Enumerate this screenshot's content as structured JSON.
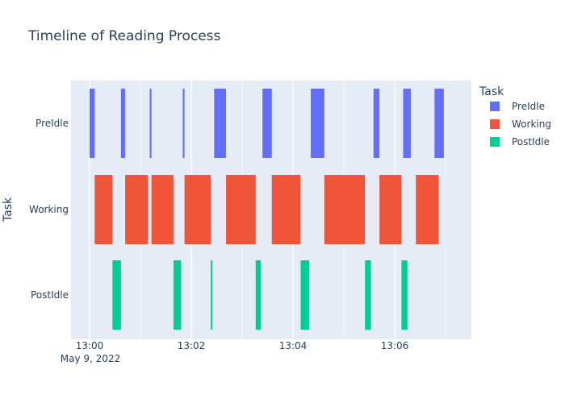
{
  "chart_data": {
    "type": "timeline",
    "title": "Timeline of Reading Process",
    "xlabel": "",
    "ylabel": "Task",
    "x_ticks": [
      "13:00",
      "13:02",
      "13:04",
      "13:06"
    ],
    "x_date_label": "May 9, 2022",
    "xlim": [
      "13:00:00",
      "13:07:00"
    ],
    "categories": [
      "PreIdle",
      "Working",
      "PostIdle"
    ],
    "legend": {
      "title": "Task",
      "position": "right",
      "entries": [
        "PreIdle",
        "Working",
        "PostIdle"
      ]
    },
    "grid": true,
    "colors": {
      "PreIdle": "#636efa",
      "Working": "#ef553b",
      "PostIdle": "#00cc96",
      "plot_bg": "#e5ecf6",
      "grid": "#ffffff",
      "text": "#2a3f5f"
    },
    "series": [
      {
        "name": "PreIdle",
        "segments": [
          [
            "13:00:00",
            "13:00:06"
          ],
          [
            "13:00:37",
            "13:00:42"
          ],
          [
            "13:01:11",
            "13:01:13"
          ],
          [
            "13:01:50",
            "13:01:52"
          ],
          [
            "13:02:27",
            "13:02:41"
          ],
          [
            "13:03:24",
            "13:03:35"
          ],
          [
            "13:04:21",
            "13:04:37"
          ],
          [
            "13:05:35",
            "13:05:42"
          ],
          [
            "13:06:10",
            "13:06:19"
          ],
          [
            "13:06:47",
            "13:06:58"
          ]
        ]
      },
      {
        "name": "Working",
        "segments": [
          [
            "13:00:06",
            "13:00:27"
          ],
          [
            "13:00:42",
            "13:01:09"
          ],
          [
            "13:01:13",
            "13:01:39"
          ],
          [
            "13:01:52",
            "13:02:23"
          ],
          [
            "13:02:41",
            "13:03:16"
          ],
          [
            "13:03:35",
            "13:04:09"
          ],
          [
            "13:04:37",
            "13:05:25"
          ],
          [
            "13:05:42",
            "13:06:08"
          ],
          [
            "13:06:25",
            "13:06:52"
          ]
        ]
      },
      {
        "name": "PostIdle",
        "segments": [
          [
            "13:00:27",
            "13:00:37"
          ],
          [
            "13:01:39",
            "13:01:48"
          ],
          [
            "13:02:23",
            "13:02:25"
          ],
          [
            "13:03:16",
            "13:03:22"
          ],
          [
            "13:04:09",
            "13:04:19"
          ],
          [
            "13:05:25",
            "13:05:32"
          ],
          [
            "13:06:08",
            "13:06:15"
          ]
        ]
      }
    ]
  }
}
